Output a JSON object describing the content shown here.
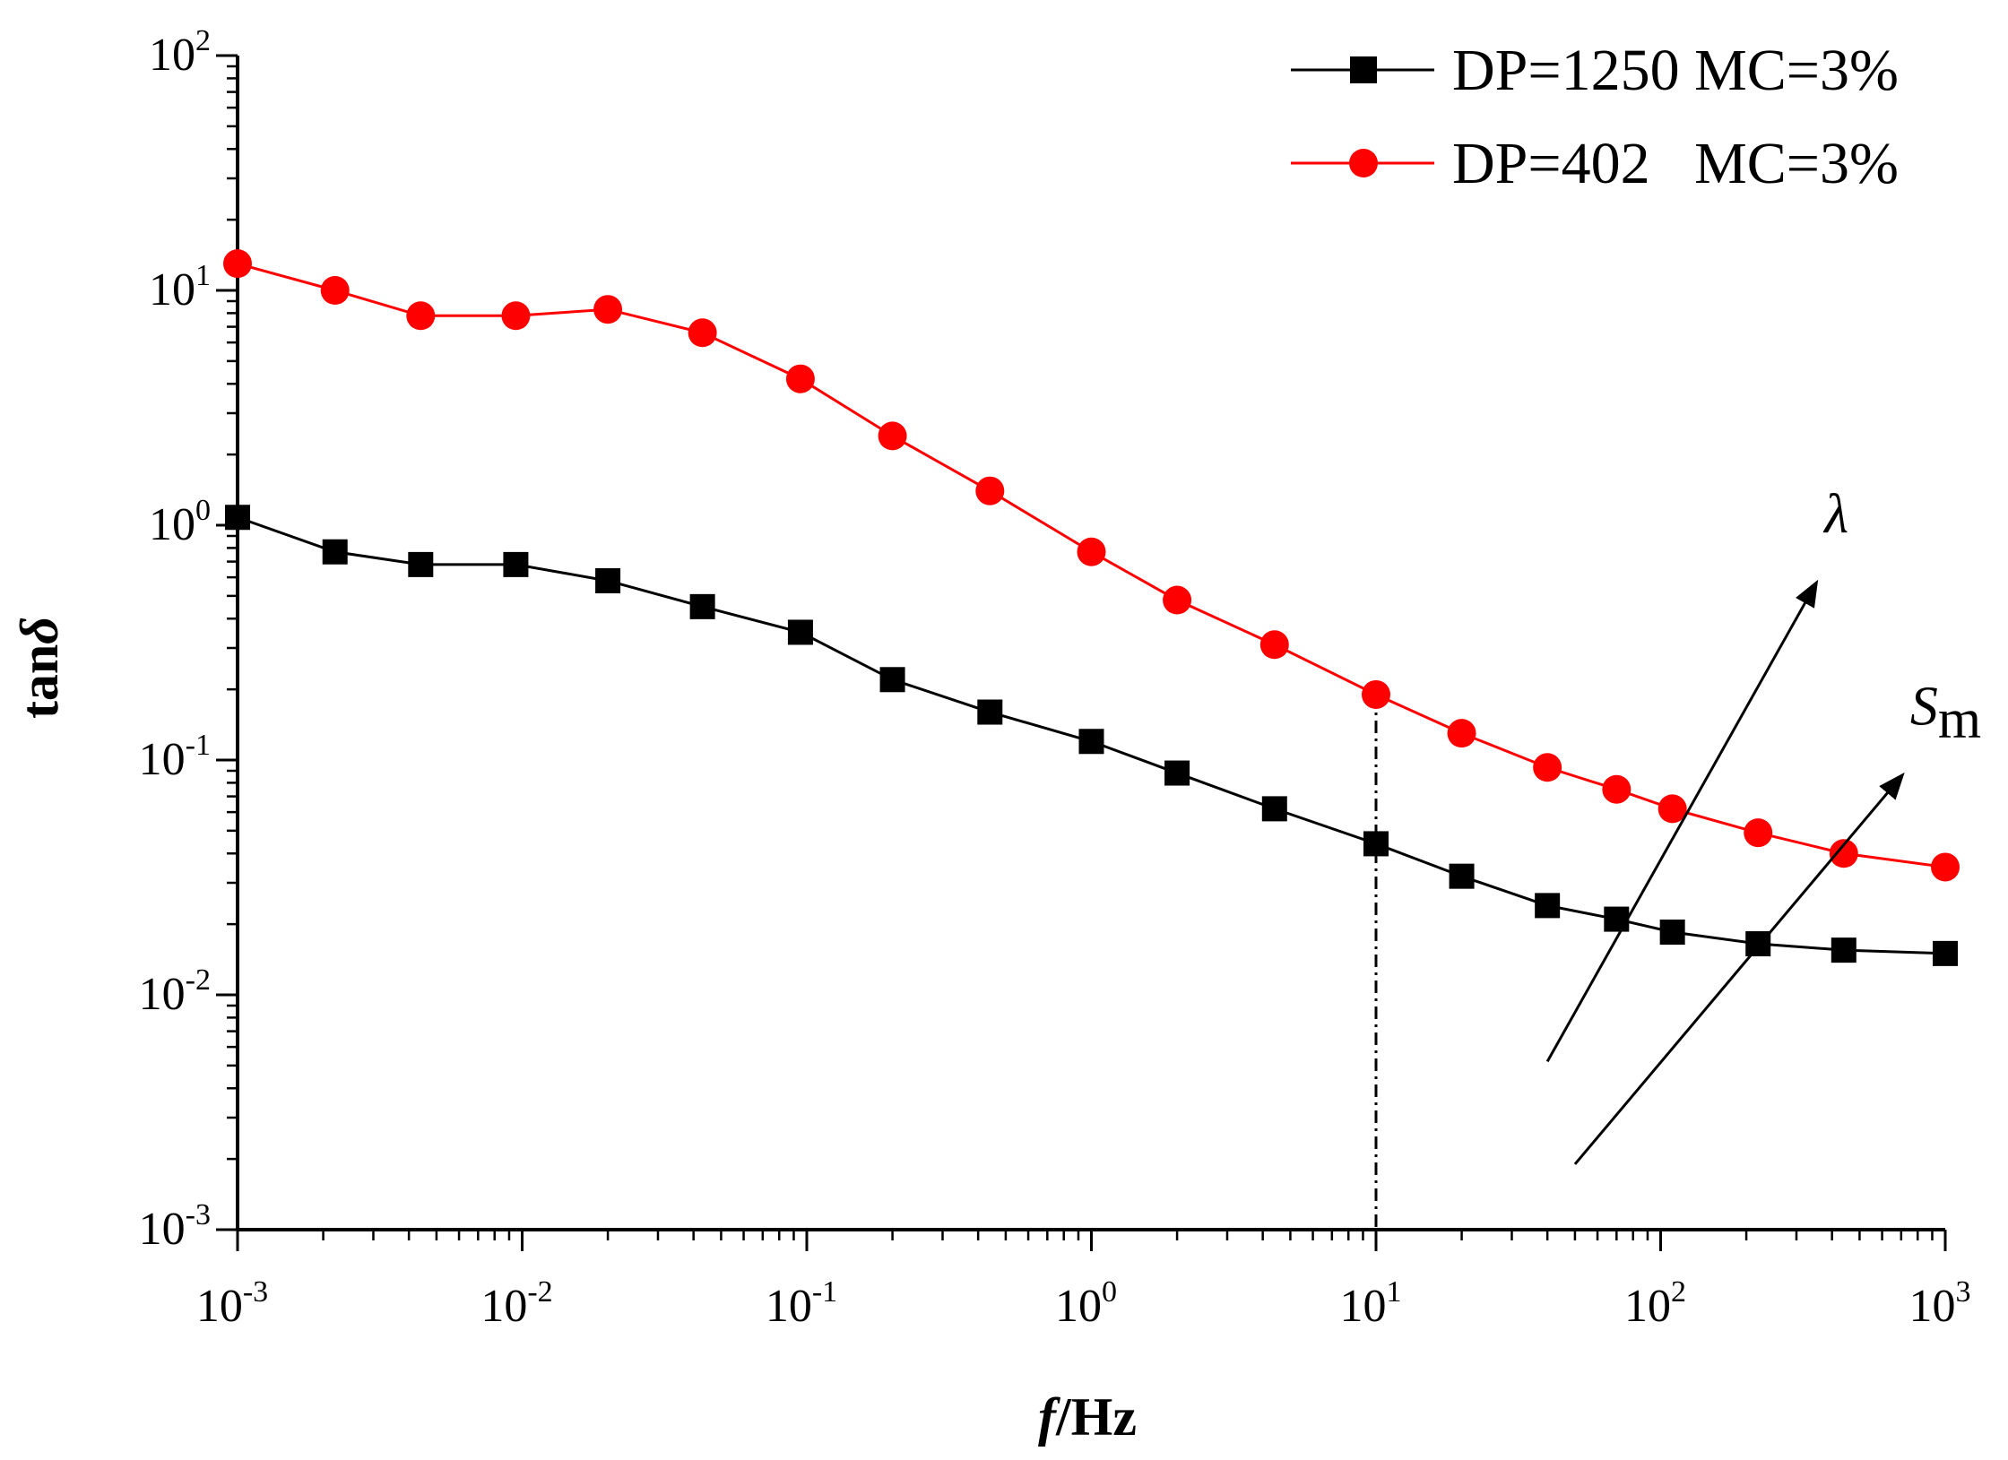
{
  "chart_data": {
    "type": "line",
    "title": "",
    "xlabel": {
      "italic": "f",
      "rest": "/Hz"
    },
    "ylabel": {
      "plain": "tan",
      "italic": "δ"
    },
    "xscale": "log",
    "yscale": "log",
    "xlim": [
      0.001,
      1000
    ],
    "ylim": [
      0.001,
      100
    ],
    "xticks": [
      {
        "base": "10",
        "exp": "-3",
        "value": 0.001
      },
      {
        "base": "10",
        "exp": "-2",
        "value": 0.01
      },
      {
        "base": "10",
        "exp": "-1",
        "value": 0.1
      },
      {
        "base": "10",
        "exp": "0",
        "value": 1
      },
      {
        "base": "10",
        "exp": "1",
        "value": 10
      },
      {
        "base": "10",
        "exp": "2",
        "value": 100
      },
      {
        "base": "10",
        "exp": "3",
        "value": 1000
      }
    ],
    "yticks": [
      {
        "base": "10",
        "exp": "-3",
        "value": 0.001
      },
      {
        "base": "10",
        "exp": "-2",
        "value": 0.01
      },
      {
        "base": "10",
        "exp": "-1",
        "value": 0.1
      },
      {
        "base": "10",
        "exp": "0",
        "value": 1
      },
      {
        "base": "10",
        "exp": "1",
        "value": 10
      },
      {
        "base": "10",
        "exp": "2",
        "value": 100
      }
    ],
    "x": [
      0.001,
      0.0022,
      0.0044,
      0.0095,
      0.02,
      0.043,
      0.095,
      0.2,
      0.44,
      1.0,
      2.0,
      4.4,
      10,
      20,
      40,
      70,
      110,
      220,
      440,
      1000
    ],
    "series": [
      {
        "name": "DP=1250 MC=3%",
        "color": "#000000",
        "marker": "square",
        "values": [
          1.08,
          0.77,
          0.68,
          0.68,
          0.58,
          0.45,
          0.35,
          0.22,
          0.16,
          0.12,
          0.088,
          0.062,
          0.044,
          0.032,
          0.024,
          0.021,
          0.0185,
          0.0165,
          0.0155,
          0.015
        ]
      },
      {
        "name": "DP=402   MC=3%",
        "color": "#ff0000",
        "marker": "circle",
        "values": [
          13.0,
          10.0,
          7.8,
          7.8,
          8.3,
          6.6,
          4.2,
          2.4,
          1.4,
          0.77,
          0.48,
          0.31,
          0.19,
          0.13,
          0.093,
          0.075,
          0.062,
          0.049,
          0.04,
          0.035
        ]
      }
    ],
    "legend": "top-right",
    "reference_line": {
      "x": 10,
      "y_from": 0.001,
      "y_to": 0.19,
      "style": "dash-dot"
    },
    "annotations": [
      {
        "text": "λ",
        "arrow_from": [
          40,
          0.0052
        ],
        "arrow_to": [
          350,
          0.56
        ]
      },
      {
        "text": "S",
        "subscript": "m",
        "arrow_from": [
          50,
          0.0019
        ],
        "arrow_to": [
          700,
          0.085
        ]
      }
    ]
  }
}
